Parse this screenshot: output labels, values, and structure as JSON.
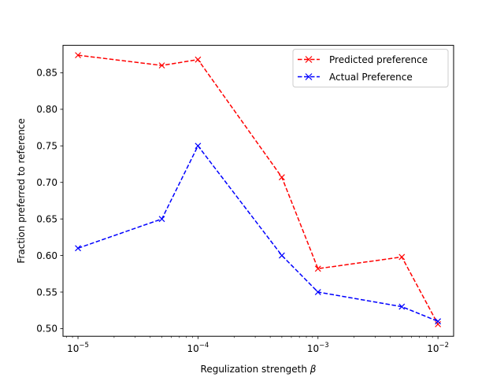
{
  "chart_data": {
    "type": "line",
    "title": "",
    "xlabel": "Regulization strengeth β",
    "xlabel_text": "Regulization strengeth ",
    "xlabel_symbol": "β",
    "ylabel": "Fraction preferred to reference",
    "xscale": "log",
    "xlim": [
      7.5e-06,
      0.0135
    ],
    "ylim": [
      0.4895,
      0.8875
    ],
    "xticks": [
      {
        "value": 1e-05,
        "base": "10",
        "exp": "−5"
      },
      {
        "value": 0.0001,
        "base": "10",
        "exp": "−4"
      },
      {
        "value": 0.001,
        "base": "10",
        "exp": "−3"
      },
      {
        "value": 0.01,
        "base": "10",
        "exp": "−2"
      }
    ],
    "yticks": [
      0.5,
      0.55,
      0.6,
      0.65,
      0.7,
      0.75,
      0.8,
      0.85
    ],
    "ytick_labels": [
      "0.50",
      "0.55",
      "0.60",
      "0.65",
      "0.70",
      "0.75",
      "0.80",
      "0.85"
    ],
    "x": [
      1e-05,
      5e-05,
      0.0001,
      0.0005,
      0.001,
      0.005,
      0.01
    ],
    "series": [
      {
        "name": "Predicted preference",
        "color": "#ff0000",
        "marker": "x",
        "linestyle": "dashed",
        "values": [
          0.874,
          0.86,
          0.868,
          0.707,
          0.582,
          0.598,
          0.506
        ]
      },
      {
        "name": "Actual Preference",
        "color": "#0000ff",
        "marker": "x",
        "linestyle": "dashed",
        "values": [
          0.61,
          0.65,
          0.75,
          0.6,
          0.55,
          0.53,
          0.51
        ]
      }
    ],
    "legend_position": "top-right",
    "grid": false
  }
}
